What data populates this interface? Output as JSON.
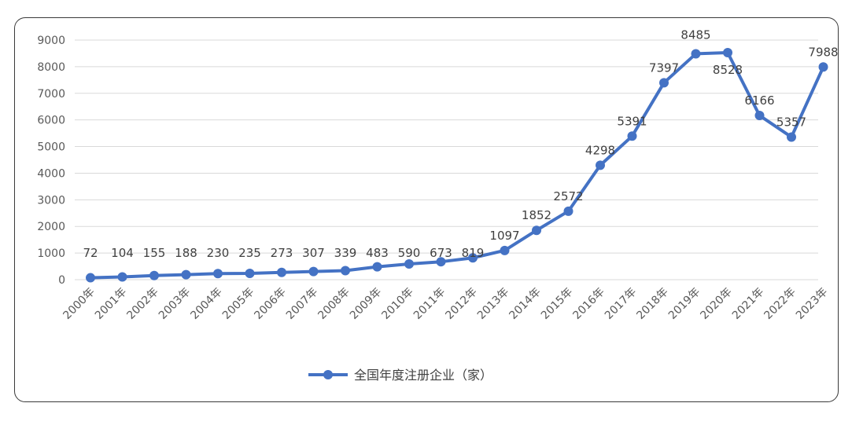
{
  "chart_data": {
    "type": "line",
    "categories": [
      "2000年",
      "2001年",
      "2002年",
      "2003年",
      "2004年",
      "2005年",
      "2006年",
      "2007年",
      "2008年",
      "2009年",
      "2010年",
      "2011年",
      "2012年",
      "2013年",
      "2014年",
      "2015年",
      "2016年",
      "2017年",
      "2018年",
      "2019年",
      "2020年",
      "2021年",
      "2022年",
      "2023年"
    ],
    "series": [
      {
        "name": "全国年度注册企业（家）",
        "values": [
          72,
          104,
          155,
          188,
          230,
          235,
          273,
          307,
          339,
          483,
          590,
          673,
          819,
          1097,
          1852,
          2572,
          4298,
          5391,
          7397,
          8485,
          8528,
          6166,
          5357,
          7988
        ],
        "color": "#4472c4"
      }
    ],
    "yticks": [
      "0",
      "1000",
      "2000",
      "3000",
      "4000",
      "5000",
      "6000",
      "7000",
      "8000",
      "9000"
    ],
    "ylim": [
      0,
      9000
    ],
    "grid": true,
    "legend_position": "bottom",
    "data_labels": [
      "72",
      "104",
      "155",
      "188",
      "230",
      "235",
      "273",
      "307",
      "339",
      "483",
      "590",
      "673",
      "819",
      "1097",
      "1852",
      "2572",
      "4298",
      "5391",
      "7397",
      "8485",
      "8528",
      "6166",
      "5357",
      "7988"
    ]
  }
}
